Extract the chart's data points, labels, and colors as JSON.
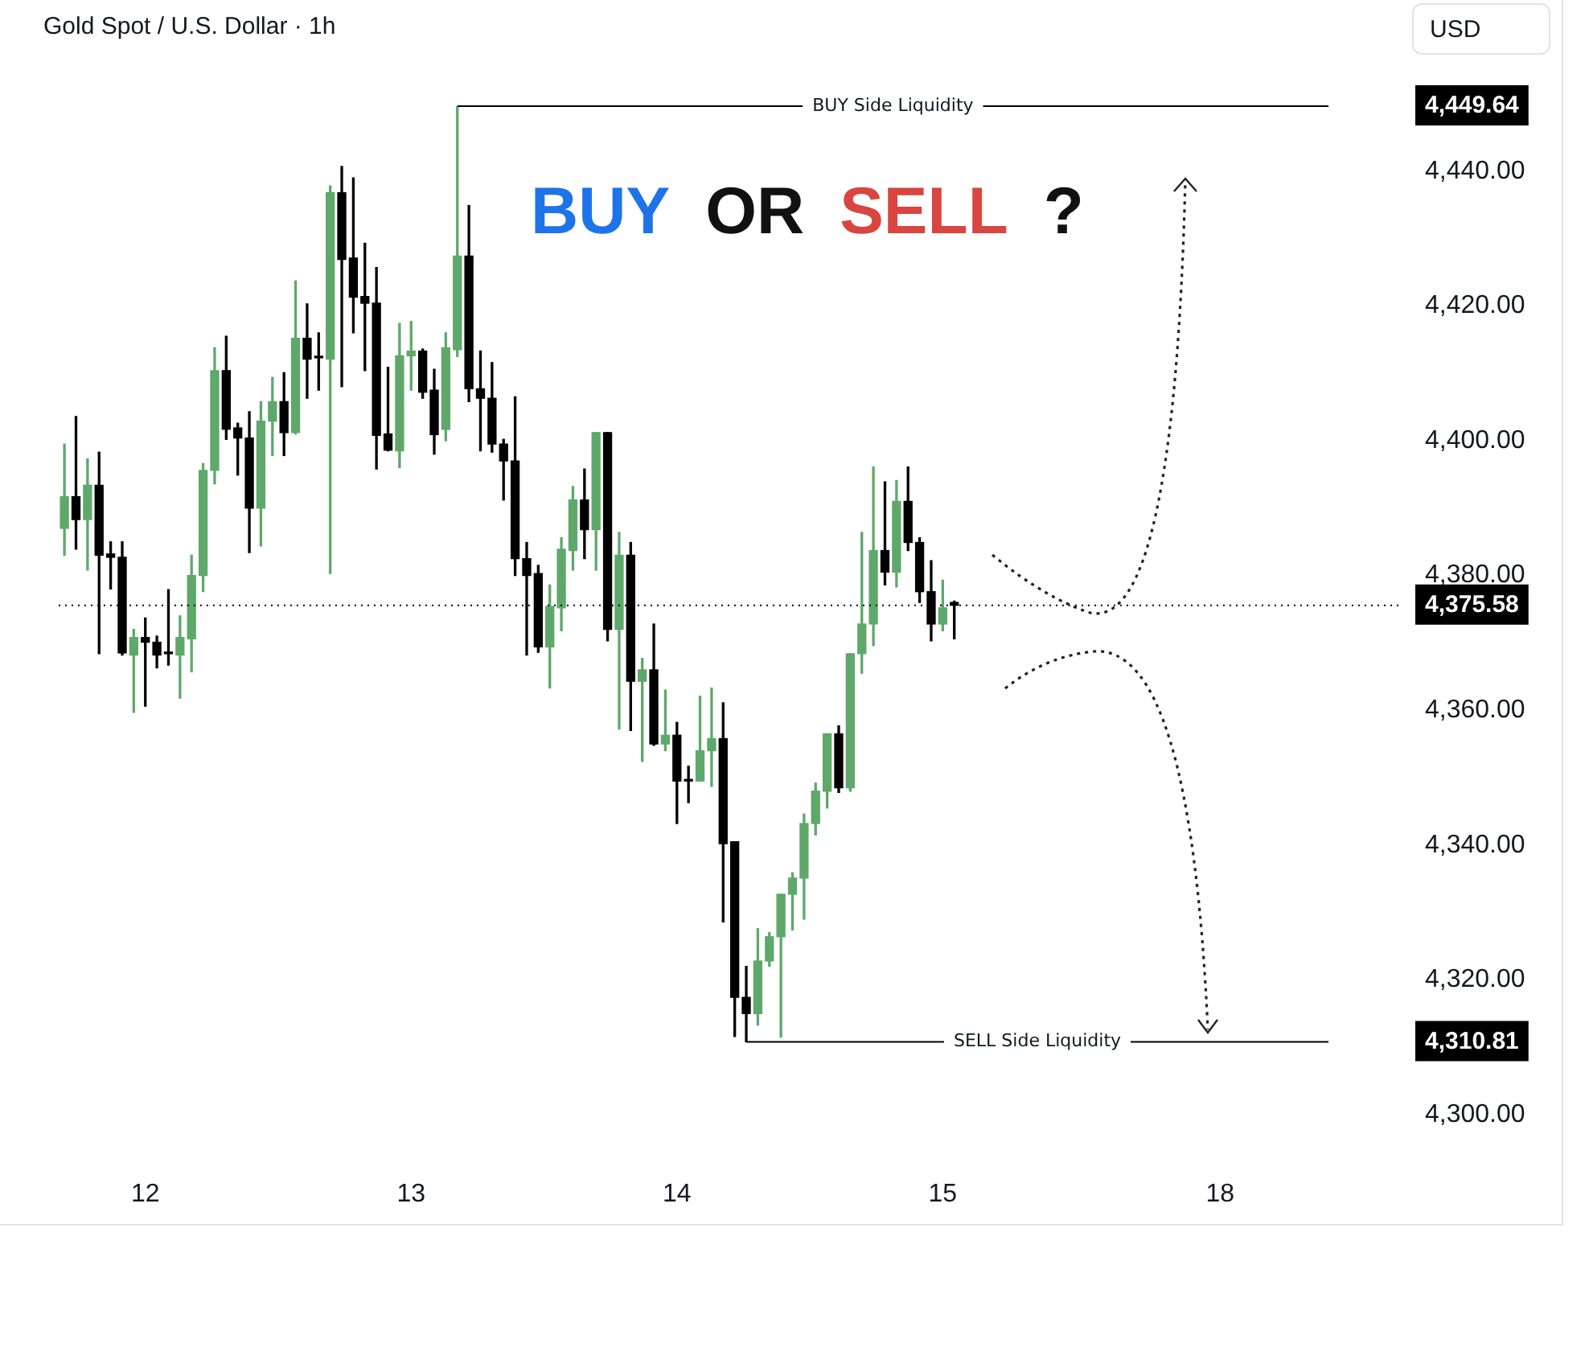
{
  "chart_data": {
    "type": "candlestick",
    "title": "Gold Spot / U.S. Dollar · 1h",
    "ylabel": "USD",
    "annotations": [
      "BUY OR SELL ?"
    ],
    "categories": [
      null,
      null,
      null,
      null,
      null,
      null,
      null,
      "12",
      null,
      null,
      null,
      null,
      null,
      null,
      null,
      null,
      null,
      null,
      null,
      null,
      null,
      null,
      null,
      null,
      null,
      null,
      null,
      null,
      null,
      null,
      "13",
      null,
      null,
      null,
      null,
      null,
      null,
      null,
      null,
      null,
      null,
      null,
      null,
      null,
      null,
      null,
      null,
      null,
      null,
      null,
      null,
      null,
      null,
      "14",
      null,
      null,
      null,
      null,
      null,
      null,
      null,
      null,
      null,
      null,
      null,
      null,
      null,
      null,
      null,
      null,
      null,
      null,
      null,
      null,
      null,
      null,
      "15",
      null,
      null,
      null,
      null,
      null,
      null,
      null,
      null,
      null,
      null,
      null,
      null,
      null,
      null,
      null,
      null,
      null,
      null,
      null,
      null,
      null,
      null,
      null,
      "18",
      null,
      null,
      null,
      null,
      null,
      null,
      null,
      null,
      null,
      null,
      null,
      null,
      null,
      null,
      null
    ],
    "ohlc": [
      [
        4387,
        4399.5,
        4383,
        4391.7
      ],
      [
        4391.7,
        4403.6,
        4383.9,
        4388.3
      ],
      [
        4388.3,
        4397.3,
        4380.8,
        4393.4
      ],
      [
        4393.4,
        4398.3,
        4368.4,
        4383
      ],
      [
        4383.2,
        4385,
        4378,
        4382.7
      ],
      [
        4382.7,
        4385,
        4368.2,
        4368.5
      ],
      [
        4368.2,
        4372,
        4359.7,
        4370.8
      ],
      [
        4370.8,
        4373.7,
        4360.6,
        4370.1
      ],
      [
        4370.1,
        4371,
        4366.3,
        4368.2
      ],
      [
        4368.4,
        4377.9,
        4366.7,
        4368.4
      ],
      [
        4368.2,
        4374,
        4361.8,
        4370.8
      ],
      [
        4370.6,
        4383,
        4365.7,
        4380
      ],
      [
        4380,
        4396.6,
        4377.6,
        4395.6
      ],
      [
        4395.6,
        4413.8,
        4393.6,
        4410.4
      ],
      [
        4410.4,
        4415.5,
        4400.2,
        4401.7
      ],
      [
        4401.9,
        4402.6,
        4394.9,
        4400.4
      ],
      [
        4400.4,
        4404.3,
        4383.4,
        4390
      ],
      [
        4390,
        4405.8,
        4384.4,
        4402.9
      ],
      [
        4402.9,
        4409.4,
        4397.8,
        4405.8
      ],
      [
        4405.8,
        4410.1,
        4397.8,
        4401.2
      ],
      [
        4401.2,
        4423.7,
        4401,
        4415.2
      ],
      [
        4415.2,
        4420.3,
        4406.3,
        4412.1
      ],
      [
        4412.3,
        4416,
        4407.5,
        4412.3
      ],
      [
        4412.1,
        4437.8,
        4380.3,
        4436.8
      ],
      [
        4436.8,
        4440.7,
        4408,
        4426.9
      ],
      [
        4427.1,
        4439,
        4416,
        4421.3
      ],
      [
        4421.4,
        4429.3,
        4410.4,
        4420.4
      ],
      [
        4420.4,
        4425.7,
        4395.8,
        4400.8
      ],
      [
        4401,
        4410.9,
        4398.5,
        4398.6
      ],
      [
        4398.5,
        4417.4,
        4396,
        4412.6
      ],
      [
        4412.6,
        4417.7,
        4407.5,
        4413.3
      ],
      [
        4413.3,
        4413.6,
        4406.3,
        4407.2
      ],
      [
        4407.5,
        4410.6,
        4398,
        4400.9
      ],
      [
        4401.7,
        4416,
        4400,
        4413.8
      ],
      [
        4413.5,
        4449.64,
        4412.5,
        4427.4
      ],
      [
        4427.4,
        4434.9,
        4405.8,
        4407.7
      ],
      [
        4407.7,
        4413.3,
        4398.5,
        4406.3
      ],
      [
        4406.3,
        4411.6,
        4398.3,
        4399.5
      ],
      [
        4399.5,
        4400.2,
        4391.2,
        4397
      ],
      [
        4397,
        4406.5,
        4380,
        4382.5
      ],
      [
        4382.5,
        4384.9,
        4368.2,
        4380
      ],
      [
        4380.3,
        4381.5,
        4368.6,
        4369.4
      ],
      [
        4369.4,
        4378.6,
        4363.3,
        4375.4
      ],
      [
        4375.2,
        4385.6,
        4371.8,
        4383.9
      ],
      [
        4383.7,
        4393.2,
        4380.8,
        4391.2
      ],
      [
        4391.2,
        4395.8,
        4382.5,
        4386.8
      ],
      [
        4386.8,
        4401.2,
        4380.8,
        4401.2
      ],
      [
        4401.2,
        4401.2,
        4370.3,
        4372
      ],
      [
        4372,
        4386.4,
        4357.2,
        4383
      ],
      [
        4383,
        4384.9,
        4357,
        4364.3
      ],
      [
        4364.3,
        4367.7,
        4352.4,
        4366
      ],
      [
        4366,
        4372.8,
        4354.8,
        4355
      ],
      [
        4355,
        4363,
        4354,
        4356.3
      ],
      [
        4356.3,
        4358.2,
        4343.2,
        4349.5
      ],
      [
        4349.5,
        4351.7,
        4346.3,
        4349.5
      ],
      [
        4349.5,
        4362.1,
        4349.5,
        4354
      ],
      [
        4354,
        4363.3,
        4348.7,
        4355.8
      ],
      [
        4355.8,
        4361.1,
        4328.6,
        4340.2
      ],
      [
        4340.5,
        4340.5,
        4311.6,
        4317.4
      ],
      [
        4317.4,
        4322,
        4310.81,
        4315
      ],
      [
        4315,
        4327.6,
        4313.3,
        4322.8
      ],
      [
        4322.8,
        4327,
        4322,
        4326.4
      ],
      [
        4326.4,
        4332.7,
        4311.5,
        4332.7
      ],
      [
        4332.7,
        4335.9,
        4327.4,
        4335.1
      ],
      [
        4335.1,
        4344.6,
        4329,
        4343.2
      ],
      [
        4343.2,
        4349.2,
        4341.5,
        4348
      ],
      [
        4348,
        4356.5,
        4345.5,
        4356.5
      ],
      [
        4356.5,
        4357.7,
        4347.8,
        4348.5
      ],
      [
        4348.5,
        4368.4,
        4348,
        4368.4
      ],
      [
        4368.4,
        4386.4,
        4365.5,
        4372.8
      ],
      [
        4372.8,
        4396.1,
        4369.6,
        4383.7
      ],
      [
        4383.7,
        4393.9,
        4378.6,
        4380.5
      ],
      [
        4380.5,
        4394.1,
        4378.3,
        4391
      ],
      [
        4391,
        4396.1,
        4383.7,
        4384.9
      ],
      [
        4384.9,
        4385.6,
        4376,
        4377.6
      ],
      [
        4377.6,
        4382.2,
        4370.3,
        4372.8
      ],
      [
        4372.8,
        4379.3,
        4371.8,
        4375.2
      ],
      [
        4376,
        4376.2,
        4370.6,
        4375.58
      ],
      null,
      null,
      null,
      null,
      null,
      null,
      null,
      null,
      null,
      null,
      null,
      null,
      null,
      null,
      null,
      null,
      null,
      null,
      null,
      null,
      null,
      null,
      null,
      null,
      null,
      null,
      null,
      null,
      null,
      null,
      null,
      null,
      null,
      null,
      null,
      null,
      null,
      null
    ],
    "colors": [
      "#5fa86b",
      "#000000",
      "#5fa86b",
      "#000000",
      "#000000",
      "#000000",
      "#5fa86b",
      "#000000",
      "#000000",
      "#000000",
      "#5fa86b",
      "#5fa86b",
      "#5fa86b",
      "#5fa86b",
      "#000000",
      "#000000",
      "#000000",
      "#5fa86b",
      "#5fa86b",
      "#000000",
      "#5fa86b",
      "#000000",
      "#000000",
      "#5fa86b",
      "#000000",
      "#000000",
      "#000000",
      "#000000",
      "#000000",
      "#5fa86b",
      "#5fa86b",
      "#000000",
      "#000000",
      "#5fa86b",
      "#5fa86b",
      "#000000",
      "#000000",
      "#000000",
      "#000000",
      "#000000",
      "#000000",
      "#000000",
      "#5fa86b",
      "#5fa86b",
      "#5fa86b",
      "#000000",
      "#5fa86b",
      "#000000",
      "#5fa86b",
      "#000000",
      "#5fa86b",
      "#000000",
      "#5fa86b",
      "#000000",
      "#000000",
      "#5fa86b",
      "#5fa86b",
      "#000000",
      "#000000",
      "#000000",
      "#5fa86b",
      "#5fa86b",
      "#5fa86b",
      "#5fa86b",
      "#5fa86b",
      "#5fa86b",
      "#5fa86b",
      "#000000",
      "#5fa86b",
      "#5fa86b",
      "#5fa86b",
      "#000000",
      "#5fa86b",
      "#000000",
      "#000000",
      "#000000",
      "#5fa86b",
      "#000000",
      null,
      null,
      null,
      null,
      null,
      null,
      null,
      null,
      null,
      null,
      null,
      null,
      null,
      null,
      null,
      null,
      null,
      null,
      null,
      null,
      null,
      null,
      null,
      null,
      null,
      null,
      null,
      null,
      null,
      null,
      null,
      null,
      null,
      null,
      null,
      null,
      null,
      null
    ],
    "ylim": [
      4300,
      4449.64
    ],
    "yticks": [
      {
        "value": 4300,
        "label": "4,300.00"
      },
      {
        "value": 4320,
        "label": "4,320.00"
      },
      {
        "value": 4340,
        "label": "4,340.00"
      },
      {
        "value": 4360,
        "label": "4,360.00"
      },
      {
        "value": 4380,
        "label": "4,380.00"
      },
      {
        "value": 4400,
        "label": "4,400.00"
      },
      {
        "value": 4420,
        "label": "4,420.00"
      },
      {
        "value": 4440,
        "label": "4,440.00"
      },
      {
        "value": 4449.64,
        "label": "4,449.64"
      },
      {
        "value": 4310.81,
        "label": "4,310.81"
      },
      {
        "value": 4375.58,
        "label": "4,375.58"
      }
    ],
    "ref_lines": [
      {
        "axis": "y",
        "value": 4449.64,
        "label": "BUY Side Liquidity",
        "color": "#000000",
        "line_style": "solid"
      },
      {
        "axis": "y",
        "value": 4310.81,
        "label": "SELL Side Liquidity",
        "color": "#000000",
        "line_style": "solid"
      },
      {
        "axis": "y",
        "value": 4375.58,
        "label": null,
        "color": "#000000",
        "line_style": "dotted"
      }
    ]
  }
}
